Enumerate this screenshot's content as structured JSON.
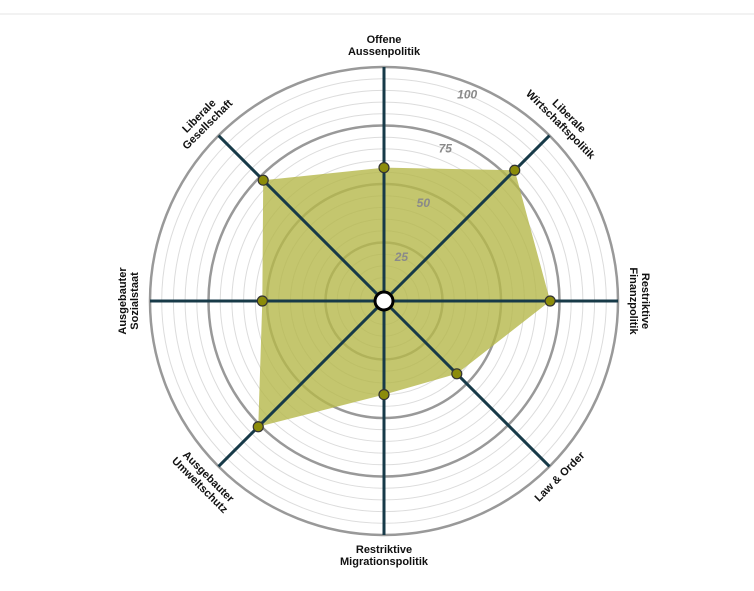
{
  "chart_data": {
    "type": "radar",
    "categories": [
      [
        "Offene",
        "Aussenpolitik"
      ],
      [
        "Liberale",
        "Wirtschaftspolitik"
      ],
      [
        "Restriktive",
        "Finanzpolitik"
      ],
      [
        "Law & Order"
      ],
      [
        "Restriktive",
        "Migrationspolitik"
      ],
      [
        "Ausgebauter",
        "Umweltschutz"
      ],
      [
        "Ausgebauter",
        "Sozialstaat"
      ],
      [
        "Liberale",
        "Gesellschaft"
      ]
    ],
    "values": [
      57,
      79,
      71,
      44,
      40,
      76,
      52,
      73
    ],
    "color": "#b5b84a",
    "ylim": [
      0,
      100
    ],
    "yticks": [
      25,
      50,
      75,
      100
    ]
  }
}
